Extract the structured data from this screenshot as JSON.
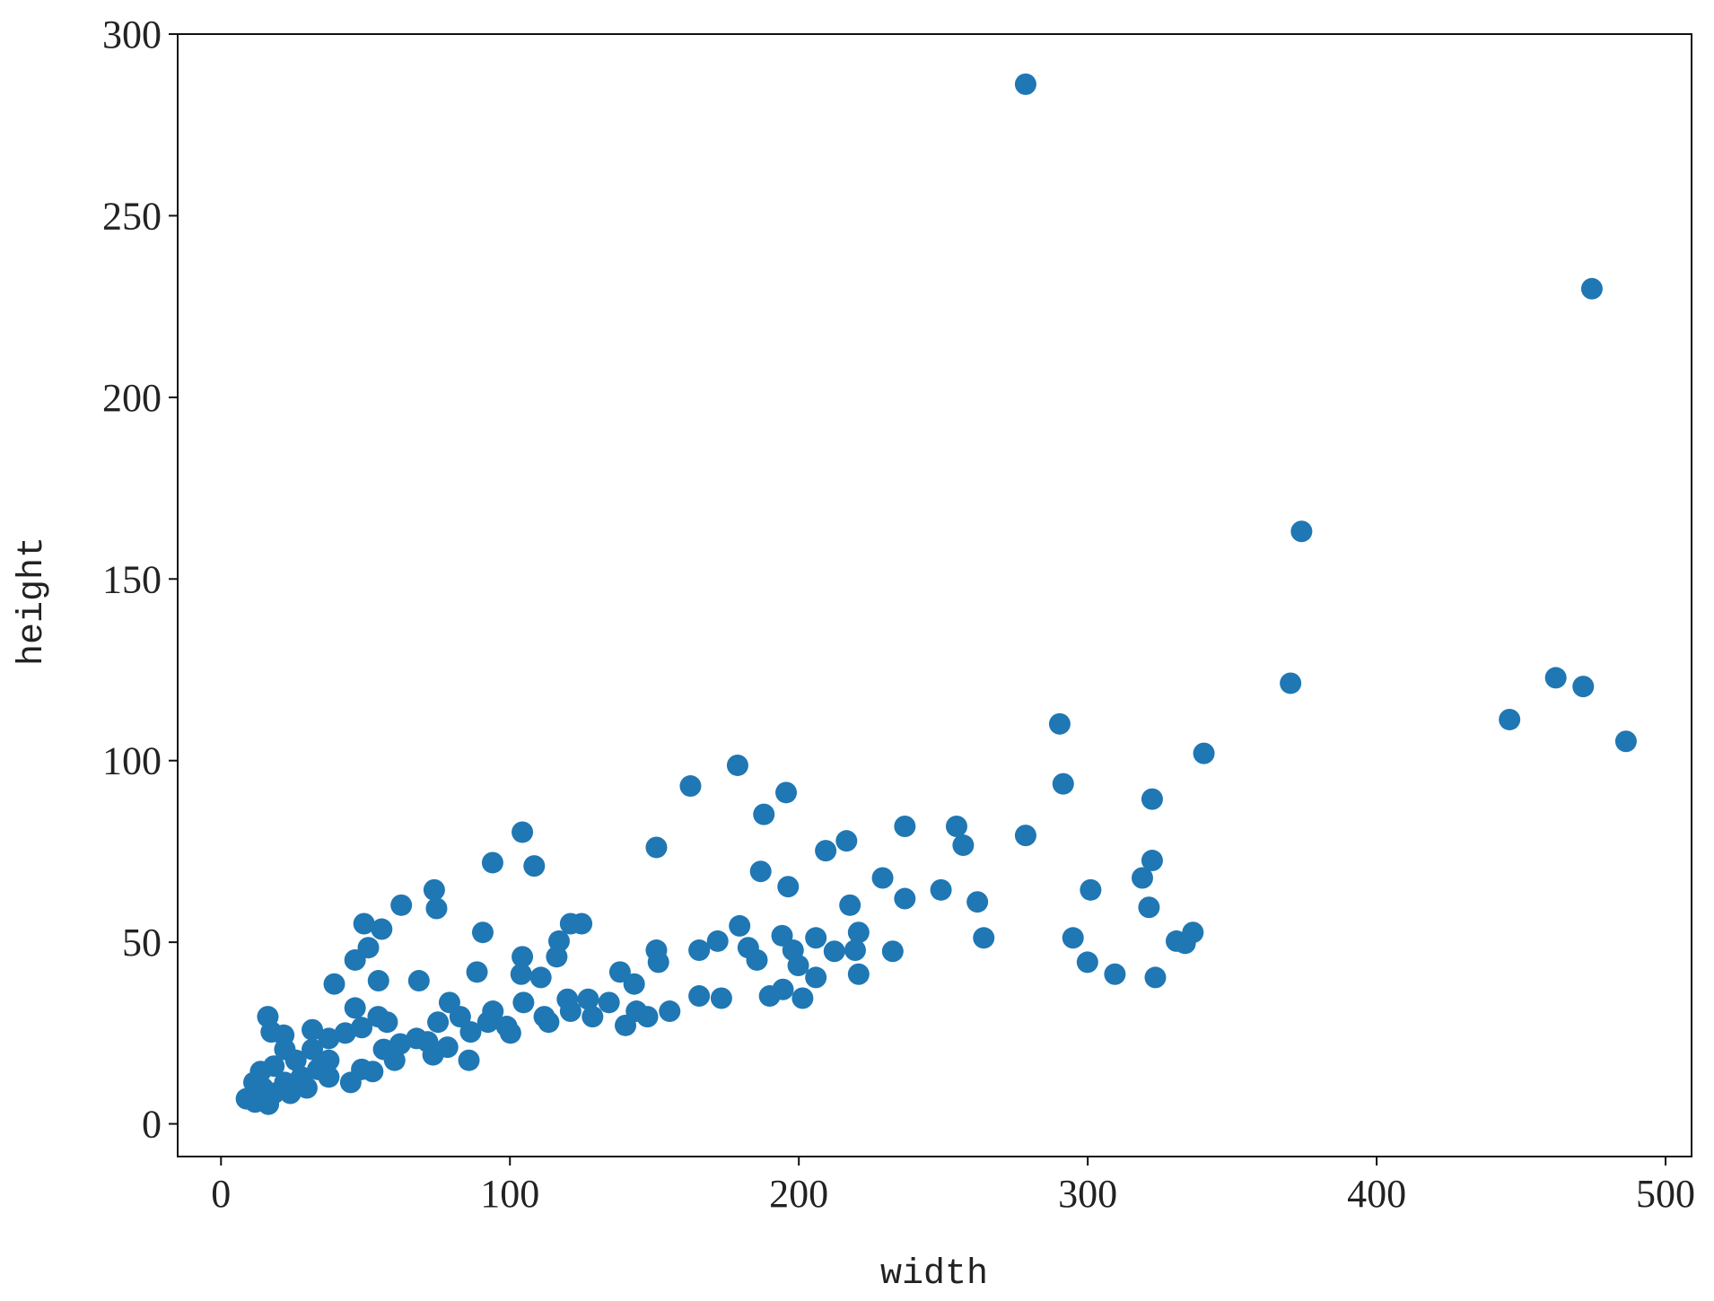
{
  "chart_data": {
    "type": "scatter",
    "x_label": "width",
    "y_label": "height",
    "color": "#1f77b4",
    "x": [
      278.5,
      474.5,
      374,
      370.2,
      462,
      471.5,
      446,
      486.3,
      340.2,
      290.3,
      291.5,
      322.3,
      278.5,
      254.6,
      256.9,
      236.7,
      236.7,
      249.2,
      261.8,
      264,
      229,
      232.5,
      301,
      294.9,
      299.9,
      309.4,
      323.4,
      318.9,
      322.3,
      321.2,
      330.7,
      333.7,
      336.4,
      216.5,
      209.3,
      217.7,
      220.7,
      220.7,
      195.6,
      187.9,
      178.8,
      162.5,
      150.7,
      186.8,
      196.3,
      104.3,
      108.4,
      94,
      73.8,
      74.6,
      62.4,
      90.6,
      121,
      124.8,
      117,
      116.2,
      49.5,
      55.6,
      51,
      46.4,
      39.2,
      54.5,
      68.5,
      88.6,
      104.3,
      103.9,
      110.7,
      150.7,
      151.4,
      165.5,
      171.9,
      179.5,
      182.5,
      185.5,
      194.2,
      198,
      199.8,
      205.9,
      205.9,
      212.3,
      219.5,
      189.9,
      194.5,
      201.3,
      173.2,
      165.5,
      155.3,
      138.1,
      143,
      134.3,
      140,
      127.1,
      119.9,
      111.9,
      98.9,
      86.4,
      78.4,
      85.8,
      71.5,
      60.1,
      48.7,
      37.3,
      16.2,
      17.4,
      21.7,
      31.6,
      46.4,
      57.5,
      79.1,
      94.1,
      104.7,
      121,
      11.8,
      14.5,
      18.3,
      22.1,
      27.8,
      33.5,
      8.8,
      16.4,
      24,
      29.7,
      37.3,
      44.9,
      52.5,
      25.9,
      31.6,
      37.3,
      43,
      48.7,
      54.4,
      18.3,
      22.1,
      11.4,
      13.7,
      67.7,
      62,
      75.1,
      82.8,
      92.4,
      100.2,
      113.4,
      128.6,
      143.8,
      147.6,
      56.3,
      73.4
    ],
    "values": [
      286.2,
      229.9,
      163.1,
      121.3,
      122.8,
      120.4,
      111.3,
      105.3,
      102,
      110.1,
      93.6,
      89.4,
      79.4,
      81.9,
      76.7,
      81.9,
      62,
      64.4,
      61.1,
      51.2,
      67.7,
      47.5,
      64.4,
      51.2,
      44.5,
      41.2,
      40.3,
      67.7,
      72.5,
      59.6,
      50.3,
      49.7,
      52.7,
      77.9,
      75.2,
      60.2,
      52.7,
      41.2,
      91.2,
      85.2,
      98.7,
      93,
      76.1,
      69.5,
      65.3,
      80.3,
      71,
      71.9,
      64.4,
      59.3,
      60.2,
      52.7,
      55.1,
      55.1,
      50.3,
      46,
      55.1,
      53.6,
      48.5,
      45.1,
      38.5,
      39.4,
      39.4,
      41.8,
      46,
      41.2,
      40.3,
      47.8,
      44.5,
      47.8,
      50.3,
      54.5,
      48.5,
      45.1,
      51.8,
      47.8,
      43.6,
      51.2,
      40.3,
      47.5,
      47.8,
      35.2,
      37,
      34.6,
      34.6,
      35.2,
      31,
      41.8,
      38.5,
      33.4,
      27.1,
      34.3,
      34.3,
      29.5,
      26.8,
      25.3,
      21.1,
      17.5,
      22.6,
      17.5,
      15,
      17.5,
      29.5,
      25.3,
      24.4,
      25.9,
      31.9,
      28,
      33.4,
      31,
      33.4,
      31,
      6,
      9.9,
      8.4,
      11.4,
      12.9,
      15,
      6.9,
      5.4,
      8.4,
      9.9,
      12.9,
      11.4,
      14.4,
      17.5,
      20.5,
      23.5,
      25,
      26.5,
      29.5,
      15.9,
      20.5,
      11.4,
      14.4,
      23.5,
      22,
      28,
      29.5,
      28,
      25,
      28,
      29.5,
      31,
      29.5,
      20.5,
      19
    ],
    "xlim": [
      -15,
      509
    ],
    "ylim": [
      -9,
      300
    ],
    "xticks": [
      0,
      100,
      200,
      300,
      400,
      500
    ],
    "yticks": [
      0,
      50,
      100,
      150,
      200,
      250,
      300
    ]
  }
}
